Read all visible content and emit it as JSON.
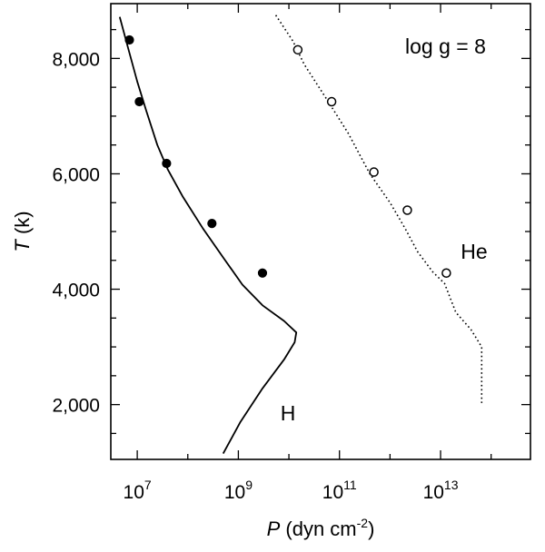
{
  "chart_data": {
    "type": "line",
    "x_scale": "log",
    "xlim": [
      3000000,
      600000000000000
    ],
    "ylim": [
      1050,
      8950
    ],
    "xlabel": {
      "italic": "P",
      "rest": " (dyn cm",
      "sup": "-2",
      "close": ")"
    },
    "ylabel": {
      "italic": "T",
      "rest": " (k)"
    },
    "x_ticks": [
      {
        "value": 10000000,
        "mantissa": "10",
        "exp": "7"
      },
      {
        "value": 1000000000,
        "mantissa": "10",
        "exp": "9"
      },
      {
        "value": 100000000000,
        "mantissa": "10",
        "exp": "11"
      },
      {
        "value": 10000000000000,
        "mantissa": "10",
        "exp": "13"
      }
    ],
    "y_ticks": [
      {
        "value": 2000,
        "label": "2,000"
      },
      {
        "value": 4000,
        "label": "4,000"
      },
      {
        "value": 6000,
        "label": "6,000"
      },
      {
        "value": 8000,
        "label": "8,000"
      }
    ],
    "annotation": "log g = 8",
    "series": [
      {
        "name": "H",
        "style": "solid",
        "line": [
          [
            4500000,
            8720
          ],
          [
            6500000,
            8200
          ],
          [
            10000000,
            7600
          ],
          [
            15000000,
            7100
          ],
          [
            25000000,
            6500
          ],
          [
            40000000,
            6080
          ],
          [
            80000000,
            5600
          ],
          [
            200000000,
            5050
          ],
          [
            500000000,
            4550
          ],
          [
            1200000000,
            4080
          ],
          [
            3000000000,
            3720
          ],
          [
            8000000000,
            3450
          ],
          [
            14000000000,
            3250
          ],
          [
            13000000000,
            3080
          ],
          [
            8000000000,
            2780
          ],
          [
            3000000000,
            2280
          ],
          [
            1100000000,
            1700
          ],
          [
            500000000,
            1150
          ]
        ],
        "points": [
          [
            7000000,
            8320
          ],
          [
            11000000,
            7250
          ],
          [
            38000000,
            6180
          ],
          [
            300000000,
            5140
          ],
          [
            3000000000,
            4280
          ]
        ],
        "marker": "filled-circle"
      },
      {
        "name": "He",
        "style": "dotted",
        "line": [
          [
            5500000000,
            8750
          ],
          [
            12000000000,
            8300
          ],
          [
            20000000000,
            7900
          ],
          [
            60000000000,
            7250
          ],
          [
            150000000000,
            6700
          ],
          [
            400000000000,
            6000
          ],
          [
            1000000000000,
            5500
          ],
          [
            2000000000000,
            5050
          ],
          [
            3500000000000,
            4650
          ],
          [
            7000000000000,
            4300
          ],
          [
            12000000000000,
            4100
          ],
          [
            20000000000000,
            3600
          ],
          [
            40000000000000,
            3300
          ],
          [
            65000000000000,
            3000
          ],
          [
            65000000000000,
            2000
          ]
        ],
        "points": [
          [
            15000000000,
            8150
          ],
          [
            70000000000,
            7250
          ],
          [
            480000000000,
            6030
          ],
          [
            2200000000000,
            5370
          ],
          [
            13000000000000,
            4280
          ]
        ],
        "marker": "open-circle"
      }
    ]
  }
}
